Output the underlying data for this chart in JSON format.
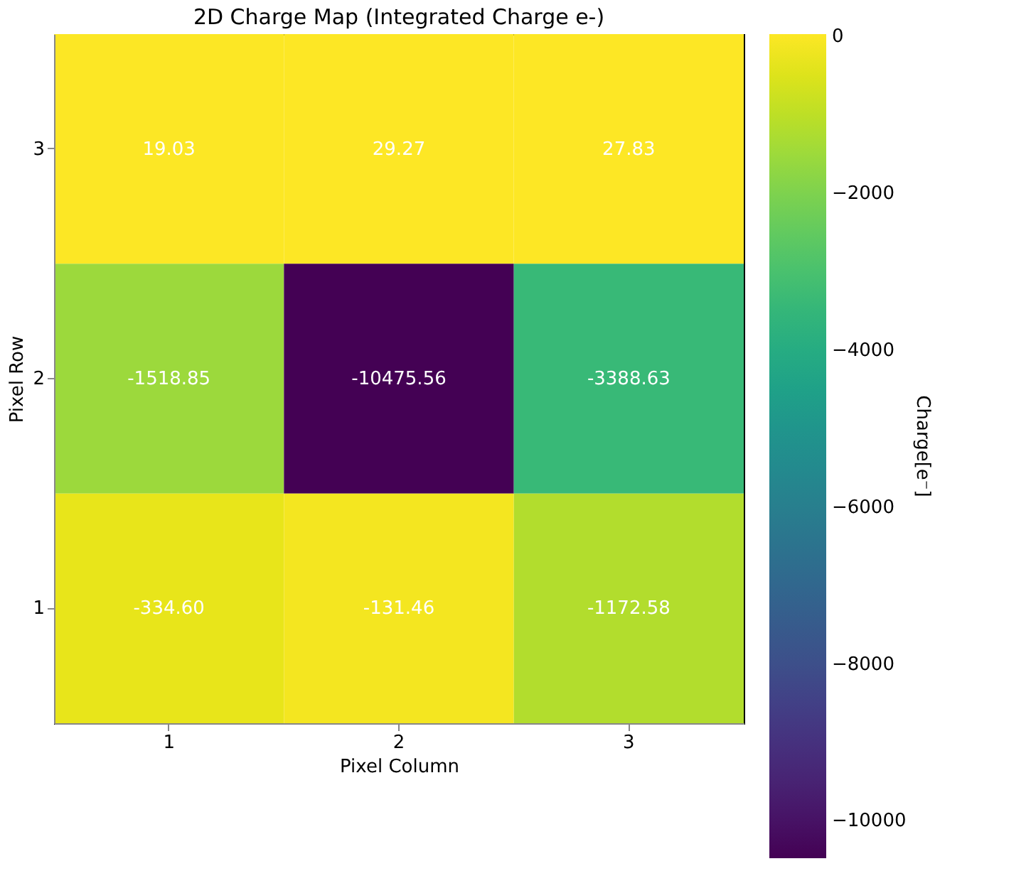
{
  "chart_data": {
    "type": "heatmap",
    "title": "2D Charge Map (Integrated Charge e-)",
    "xlabel": "Pixel Column",
    "ylabel": "Pixel Row",
    "clabel": "Charge[e⁻]",
    "categories": [
      "1",
      "2",
      "3"
    ],
    "y_categories": [
      "3",
      "2",
      "1"
    ],
    "cells": [
      [
        19.03,
        29.27,
        27.83
      ],
      [
        -1518.85,
        -10475.56,
        -3388.63
      ],
      [
        -334.6,
        -131.46,
        -1172.58
      ]
    ],
    "cell_labels": [
      [
        "19.03",
        "29.27",
        "27.83"
      ],
      [
        "-1518.85",
        "-10475.56",
        "-3388.63"
      ],
      [
        "-334.60",
        "-131.46",
        "-1172.58"
      ]
    ],
    "clim": [
      -10475.56,
      29.27
    ],
    "cticks": [
      0,
      -2000,
      -4000,
      -6000,
      -8000,
      -10000
    ],
    "data_labels": true,
    "grid": false
  }
}
